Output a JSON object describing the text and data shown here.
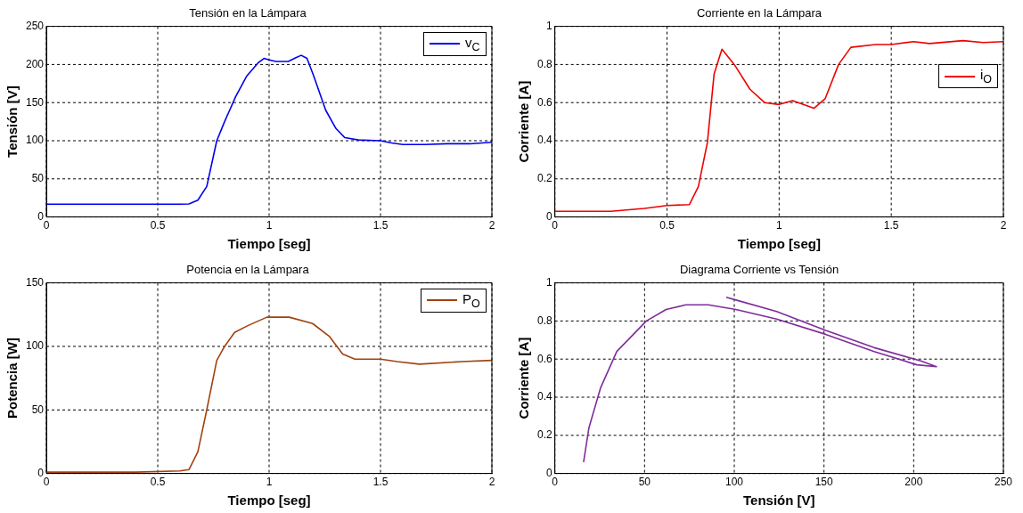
{
  "chart_data": [
    {
      "type": "line",
      "title": "Tensión en la Lámpara",
      "xlabel": "Tiempo [seg]",
      "ylabel": "Tensión [V]",
      "grid": true,
      "legend": "top right",
      "xlim": [
        0,
        2
      ],
      "ylim": [
        0,
        250
      ],
      "xticks": [
        0,
        0.5,
        1,
        1.5,
        2
      ],
      "yticks": [
        0,
        50,
        100,
        150,
        200,
        250
      ],
      "x": [
        0,
        0.3,
        0.6,
        0.64,
        0.68,
        0.72,
        0.765,
        0.8,
        0.85,
        0.9,
        0.95,
        0.977,
        1.0,
        1.03,
        1.086,
        1.12,
        1.144,
        1.17,
        1.2,
        1.254,
        1.3,
        1.34,
        1.4,
        1.5,
        1.55,
        1.6,
        1.7,
        1.8,
        1.9,
        2.0
      ],
      "series": [
        {
          "name": "v$_{C}$",
          "color": "#0000ee",
          "values": [
            16.8,
            16.8,
            16.8,
            17,
            22,
            40,
            100,
            125,
            158,
            185,
            202,
            208,
            206,
            204,
            204,
            209,
            212,
            208,
            185,
            140,
            116,
            104,
            101,
            100,
            97,
            95,
            95,
            96,
            96,
            98
          ]
        }
      ]
    },
    {
      "type": "line",
      "title": "Corriente en la Lámpara",
      "xlabel": "Tiempo [seg]",
      "ylabel": "Corriente [A]",
      "grid": true,
      "legend": "top right",
      "xlim": [
        0,
        2
      ],
      "ylim": [
        0,
        1
      ],
      "xticks": [
        0,
        0.5,
        1,
        1.5,
        2
      ],
      "yticks": [
        0,
        0.2,
        0.4,
        0.6,
        0.8,
        1
      ],
      "x": [
        0,
        0.25,
        0.4,
        0.5,
        0.6,
        0.64,
        0.68,
        0.71,
        0.745,
        0.8,
        0.87,
        0.935,
        1.0,
        1.06,
        1.155,
        1.205,
        1.265,
        1.32,
        1.43,
        1.5,
        1.6,
        1.67,
        1.82,
        1.91,
        2.0
      ],
      "series": [
        {
          "name": "i$_{O}$",
          "color": "#ee0000",
          "values": [
            0.03,
            0.03,
            0.045,
            0.06,
            0.065,
            0.16,
            0.39,
            0.75,
            0.88,
            0.8,
            0.67,
            0.6,
            0.59,
            0.61,
            0.57,
            0.62,
            0.8,
            0.89,
            0.905,
            0.905,
            0.92,
            0.91,
            0.925,
            0.915,
            0.92
          ]
        }
      ]
    },
    {
      "type": "line",
      "title": "Potencia en la Lámpara",
      "xlabel": "Tiempo [seg]",
      "ylabel": "Potencia [W]",
      "grid": true,
      "legend": "top right",
      "xlim": [
        0,
        2
      ],
      "ylim": [
        0,
        150
      ],
      "xticks": [
        0,
        0.5,
        1,
        1.5,
        2
      ],
      "yticks": [
        0,
        50,
        100,
        150
      ],
      "x": [
        0,
        0.4,
        0.6,
        0.64,
        0.68,
        0.72,
        0.765,
        0.8,
        0.845,
        0.9,
        0.99,
        1.09,
        1.195,
        1.27,
        1.33,
        1.385,
        1.5,
        1.575,
        1.675,
        1.865,
        2.0
      ],
      "series": [
        {
          "name": "P$_{O}$",
          "color": "#a0420e",
          "values": [
            1,
            1,
            2,
            3,
            17,
            50,
            89,
            100,
            111,
            116,
            123,
            123,
            118,
            108,
            94,
            90,
            90,
            88,
            86,
            88,
            89
          ]
        }
      ]
    },
    {
      "type": "line",
      "title": "Diagrama Corriente vs Tensión",
      "xlabel": "Tensión [V]",
      "ylabel": "Corriente [A]",
      "grid": true,
      "xlim": [
        0,
        250
      ],
      "ylim": [
        0,
        1
      ],
      "xticks": [
        0,
        50,
        100,
        150,
        200,
        250
      ],
      "yticks": [
        0,
        0.2,
        0.4,
        0.6,
        0.8,
        1
      ],
      "series": [
        {
          "color": "#7f2c9c",
          "x": [
            16,
            19,
            25.5,
            34.5,
            51,
            62,
            73,
            85.5,
            100.9,
            123.6,
            150.9,
            178,
            201.8,
            212.7,
            204,
            178,
            151,
            123.6,
            101,
            95.5
          ],
          "values": [
            0.06,
            0.24,
            0.45,
            0.64,
            0.8,
            0.86,
            0.885,
            0.885,
            0.86,
            0.81,
            0.73,
            0.64,
            0.57,
            0.56,
            0.59,
            0.66,
            0.75,
            0.85,
            0.91,
            0.925
          ]
        }
      ]
    }
  ]
}
